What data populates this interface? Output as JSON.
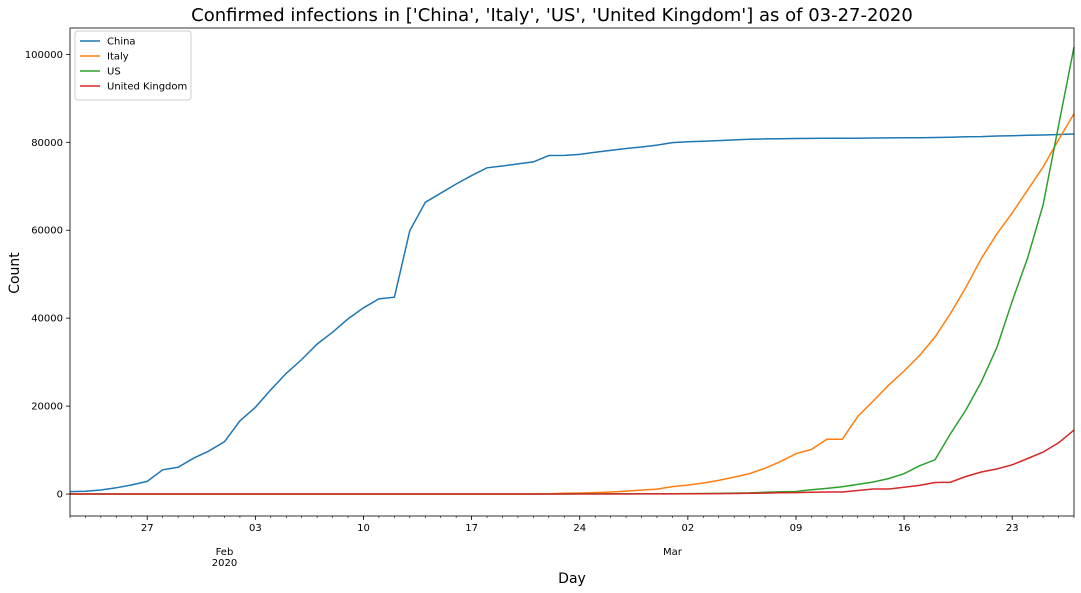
{
  "chart_data": {
    "type": "line",
    "title": "Confirmed infections in ['China', 'Italy', 'US', 'United Kingdom'] as of 03-27-2020",
    "xlabel": "Day",
    "ylabel": "Count",
    "ylim": [
      -5000,
      106000
    ],
    "x_range": [
      "2020-01-22",
      "2020-03-27"
    ],
    "grid": false,
    "legend_position": "top-left",
    "y_ticks": [
      {
        "value": 0,
        "label": "0"
      },
      {
        "value": 20000,
        "label": "20000"
      },
      {
        "value": 40000,
        "label": "40000"
      },
      {
        "value": 60000,
        "label": "60000"
      },
      {
        "value": 80000,
        "label": "80000"
      },
      {
        "value": 100000,
        "label": "100000"
      }
    ],
    "x_ticks": [
      {
        "date": "2020-01-27",
        "label": "27"
      },
      {
        "date": "2020-02-03",
        "label": "03"
      },
      {
        "date": "2020-02-10",
        "label": "10"
      },
      {
        "date": "2020-02-17",
        "label": "17"
      },
      {
        "date": "2020-02-24",
        "label": "24"
      },
      {
        "date": "2020-03-02",
        "label": "02"
      },
      {
        "date": "2020-03-09",
        "label": "09"
      },
      {
        "date": "2020-03-16",
        "label": "16"
      },
      {
        "date": "2020-03-23",
        "label": "23"
      }
    ],
    "month_labels": [
      {
        "date": "2020-02-01",
        "lines": [
          "Feb",
          "2020"
        ]
      },
      {
        "date": "2020-03-01",
        "lines": [
          "Mar"
        ]
      }
    ],
    "x": [
      "2020-01-22",
      "2020-01-23",
      "2020-01-24",
      "2020-01-25",
      "2020-01-26",
      "2020-01-27",
      "2020-01-28",
      "2020-01-29",
      "2020-01-30",
      "2020-01-31",
      "2020-02-01",
      "2020-02-02",
      "2020-02-03",
      "2020-02-04",
      "2020-02-05",
      "2020-02-06",
      "2020-02-07",
      "2020-02-08",
      "2020-02-09",
      "2020-02-10",
      "2020-02-11",
      "2020-02-12",
      "2020-02-13",
      "2020-02-14",
      "2020-02-15",
      "2020-02-16",
      "2020-02-17",
      "2020-02-18",
      "2020-02-19",
      "2020-02-20",
      "2020-02-21",
      "2020-02-22",
      "2020-02-23",
      "2020-02-24",
      "2020-02-25",
      "2020-02-26",
      "2020-02-27",
      "2020-02-28",
      "2020-02-29",
      "2020-03-01",
      "2020-03-02",
      "2020-03-03",
      "2020-03-04",
      "2020-03-05",
      "2020-03-06",
      "2020-03-07",
      "2020-03-08",
      "2020-03-09",
      "2020-03-10",
      "2020-03-11",
      "2020-03-12",
      "2020-03-13",
      "2020-03-14",
      "2020-03-15",
      "2020-03-16",
      "2020-03-17",
      "2020-03-18",
      "2020-03-19",
      "2020-03-20",
      "2020-03-21",
      "2020-03-22",
      "2020-03-23",
      "2020-03-24",
      "2020-03-25",
      "2020-03-26",
      "2020-03-27"
    ],
    "series": [
      {
        "name": "China",
        "color": "#1f77b4",
        "values": [
          548,
          643,
          920,
          1406,
          2075,
          2877,
          5509,
          6087,
          8141,
          9802,
          11891,
          16630,
          19716,
          23707,
          27440,
          30587,
          34110,
          36814,
          39829,
          42354,
          44386,
          44759,
          59895,
          66358,
          68413,
          70513,
          72434,
          74211,
          74619,
          75077,
          75550,
          77001,
          77022,
          77241,
          77754,
          78166,
          78600,
          78928,
          79356,
          79932,
          80136,
          80261,
          80386,
          80537,
          80690,
          80770,
          80823,
          80860,
          80887,
          80921,
          80932,
          80945,
          80977,
          81003,
          81033,
          81058,
          81102,
          81156,
          81250,
          81305,
          81435,
          81498,
          81591,
          81661,
          81782,
          81897
        ]
      },
      {
        "name": "Italy",
        "color": "#ff7f0e",
        "values": [
          0,
          0,
          0,
          0,
          0,
          0,
          0,
          0,
          0,
          2,
          2,
          2,
          2,
          2,
          2,
          2,
          3,
          3,
          3,
          3,
          3,
          3,
          3,
          3,
          3,
          3,
          3,
          3,
          3,
          3,
          20,
          62,
          155,
          229,
          322,
          453,
          655,
          888,
          1128,
          1694,
          2036,
          2502,
          3089,
          3858,
          4636,
          5883,
          7375,
          9172,
          10149,
          12462,
          12462,
          17660,
          21157,
          24747,
          27980,
          31506,
          35713,
          41035,
          47021,
          53578,
          59138,
          63927,
          69176,
          74386,
          80589,
          86498
        ]
      },
      {
        "name": "US",
        "color": "#2ca02c",
        "values": [
          1,
          1,
          2,
          2,
          5,
          5,
          5,
          5,
          5,
          7,
          8,
          8,
          11,
          11,
          11,
          11,
          11,
          11,
          11,
          11,
          12,
          12,
          13,
          13,
          13,
          13,
          13,
          13,
          13,
          13,
          15,
          15,
          15,
          51,
          51,
          57,
          58,
          60,
          68,
          74,
          98,
          118,
          149,
          217,
          262,
          402,
          518,
          583,
          959,
          1281,
          1663,
          2179,
          2727,
          3499,
          4632,
          6421,
          7786,
          13680,
          19101,
          25493,
          33276,
          43847,
          53740,
          65778,
          83836,
          101657
        ]
      },
      {
        "name": "United Kingdom",
        "color": "#d62728",
        "values": [
          0,
          0,
          0,
          0,
          0,
          0,
          0,
          0,
          0,
          2,
          2,
          2,
          2,
          2,
          2,
          2,
          3,
          3,
          3,
          8,
          8,
          9,
          9,
          9,
          9,
          9,
          9,
          9,
          9,
          9,
          9,
          9,
          9,
          13,
          13,
          13,
          15,
          20,
          23,
          36,
          40,
          51,
          85,
          115,
          163,
          206,
          273,
          321,
          382,
          456,
          456,
          798,
          1140,
          1140,
          1543,
          1950,
          2626,
          2689,
          3983,
          5018,
          5683,
          6650,
          8077,
          9529,
          11658,
          14543
        ]
      }
    ]
  }
}
